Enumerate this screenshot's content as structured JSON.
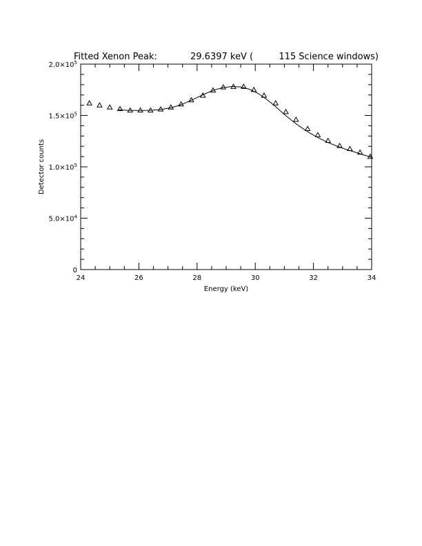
{
  "chart_data": {
    "type": "scatter",
    "title": "Fitted Xenon Peak:",
    "title_energy": "29.6397 keV (",
    "title_windows": "115 Science windows)",
    "xlabel": "Energy (keV)",
    "ylabel": "Detector counts",
    "xlim": [
      24,
      34
    ],
    "ylim": [
      0,
      200000
    ],
    "x_ticks": [
      {
        "value": 24,
        "label": "24"
      },
      {
        "value": 26,
        "label": "26"
      },
      {
        "value": 28,
        "label": "28"
      },
      {
        "value": 30,
        "label": "30"
      },
      {
        "value": 32,
        "label": "32"
      },
      {
        "value": 34,
        "label": "34"
      }
    ],
    "y_ticks": [
      {
        "value": 0,
        "mant": "0",
        "exp": ""
      },
      {
        "value": 50000,
        "mant": "5.0×10",
        "exp": "4"
      },
      {
        "value": 100000,
        "mant": "1.0×10",
        "exp": "5"
      },
      {
        "value": 150000,
        "mant": "1.5×10",
        "exp": "5"
      },
      {
        "value": 200000,
        "mant": "2.0×10",
        "exp": "5"
      }
    ],
    "grid": false,
    "marker": "triangle",
    "points": {
      "x": [
        24.3,
        24.65,
        25.0,
        25.35,
        25.7,
        26.05,
        26.4,
        26.75,
        27.1,
        27.45,
        27.8,
        28.2,
        28.55,
        28.9,
        29.25,
        29.6,
        29.95,
        30.3,
        30.7,
        31.05,
        31.4,
        31.8,
        32.15,
        32.5,
        32.9,
        33.25,
        33.6,
        33.95
      ],
      "y": [
        162000,
        160000,
        158000,
        156500,
        155000,
        155000,
        155000,
        156000,
        158000,
        161000,
        165000,
        169500,
        174500,
        177500,
        178000,
        178000,
        175000,
        169500,
        162000,
        153500,
        146000,
        137000,
        131000,
        125500,
        120500,
        117500,
        114000,
        110000
      ]
    },
    "fit_curve": {
      "x": [
        25.3,
        25.6,
        25.9,
        26.2,
        26.5,
        26.8,
        27.1,
        27.4,
        27.7,
        28.0,
        28.3,
        28.6,
        28.9,
        29.2,
        29.5,
        29.8,
        30.1,
        30.4,
        30.7,
        31.0,
        31.3,
        31.6,
        31.9,
        32.2,
        32.5,
        32.8,
        33.1,
        33.4,
        33.7,
        34.0
      ],
      "y": [
        155500,
        155000,
        154800,
        154800,
        155200,
        156000,
        157500,
        160000,
        163500,
        167500,
        171500,
        175000,
        177200,
        178200,
        177800,
        175500,
        171500,
        165500,
        158500,
        151000,
        144000,
        138000,
        132500,
        127800,
        123700,
        120200,
        117200,
        114500,
        111800,
        109200
      ]
    }
  }
}
